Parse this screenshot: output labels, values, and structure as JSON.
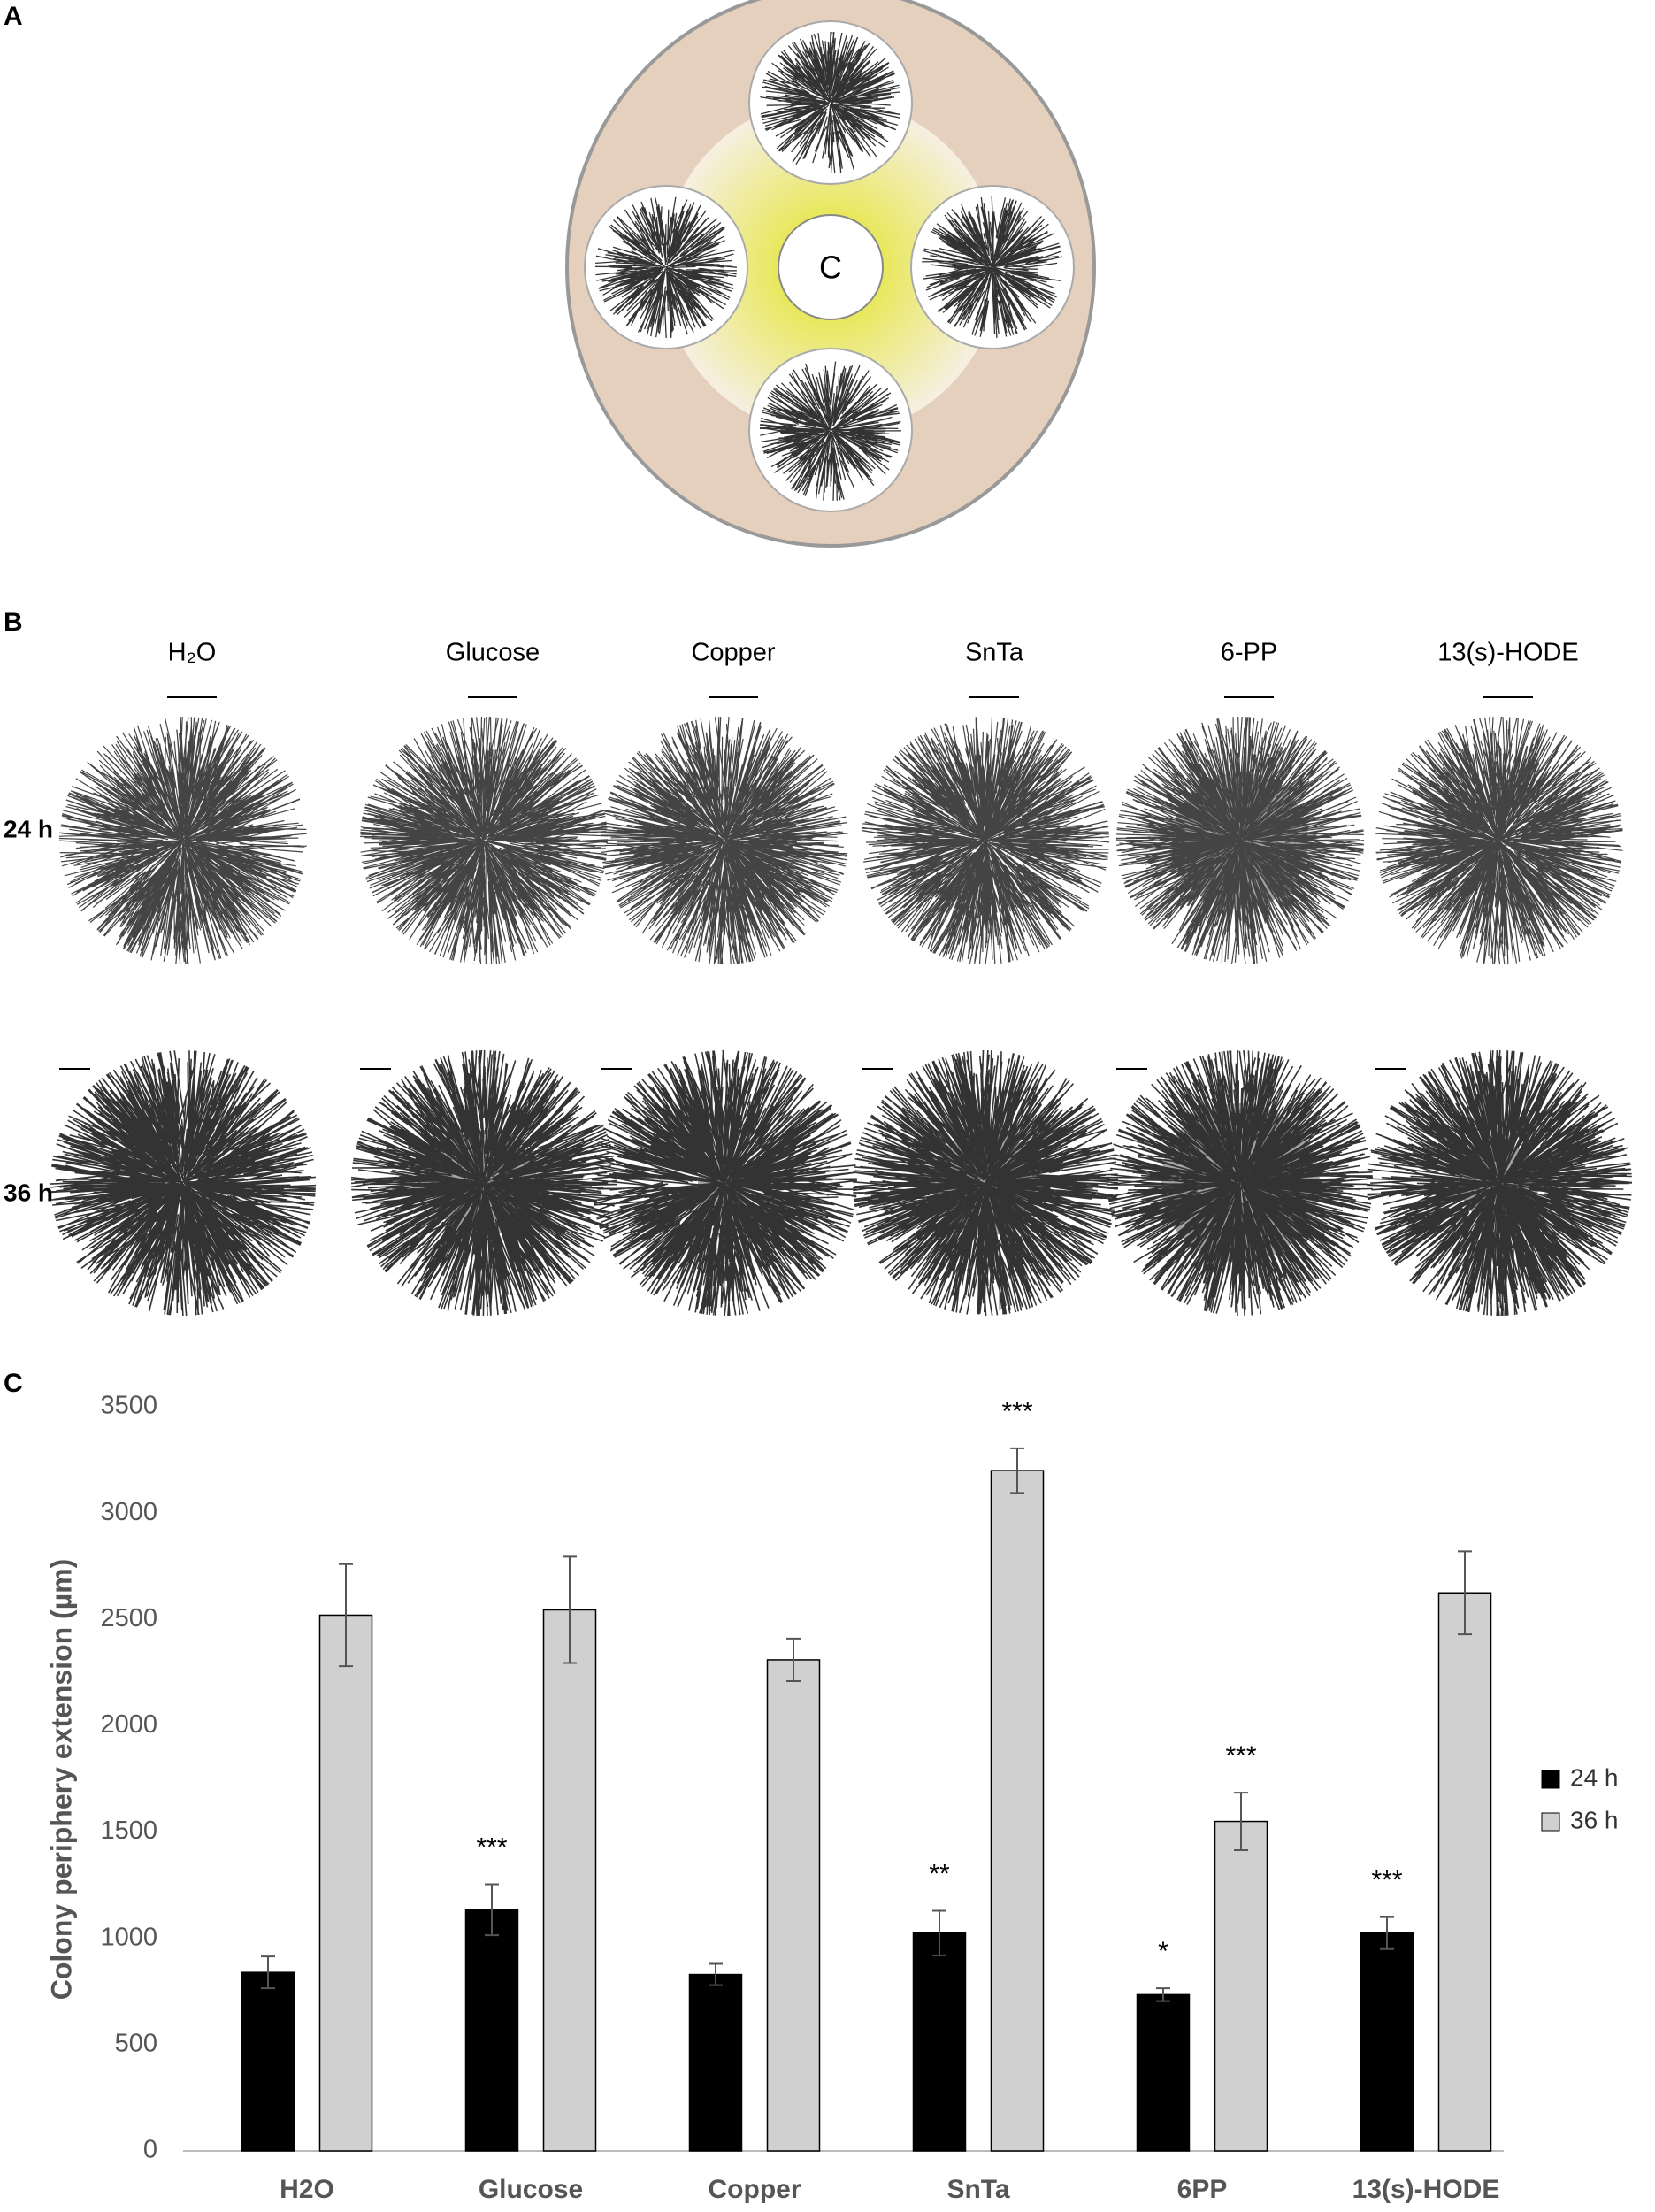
{
  "panel_labels": [
    "A",
    "B",
    "C"
  ],
  "panel_a": {
    "center_label": "C"
  },
  "panel_b": {
    "columns": [
      "H₂O",
      "Glucose",
      "Copper",
      "SnTa",
      "6-PP",
      "13(s)-HODE"
    ],
    "rows": [
      "24 h",
      "36 h"
    ]
  },
  "chart_data": {
    "type": "bar",
    "y_label": "Colony periphery extension (µm)",
    "categories": [
      "H2O",
      "Glucose",
      "Copper",
      "SnTa",
      "6PP",
      "13(s)-HODE"
    ],
    "series": [
      {
        "name": "24 h",
        "color": "#000000",
        "values": [
          840,
          1135,
          830,
          1025,
          735,
          1025
        ],
        "errors": [
          75,
          120,
          50,
          105,
          30,
          75
        ],
        "annotations": [
          null,
          "***",
          null,
          "**",
          "*",
          "***"
        ]
      },
      {
        "name": "36 h",
        "color": "#d0d0d0",
        "values": [
          2520,
          2545,
          2310,
          3200,
          1550,
          2625
        ],
        "errors": [
          240,
          250,
          100,
          105,
          135,
          195
        ],
        "annotations": [
          null,
          null,
          null,
          "***",
          "***",
          null
        ]
      }
    ],
    "ylim": [
      0,
      3500
    ],
    "yticks": [
      0,
      500,
      1000,
      1500,
      2000,
      2500,
      3000,
      3500
    ],
    "legend": "right"
  }
}
